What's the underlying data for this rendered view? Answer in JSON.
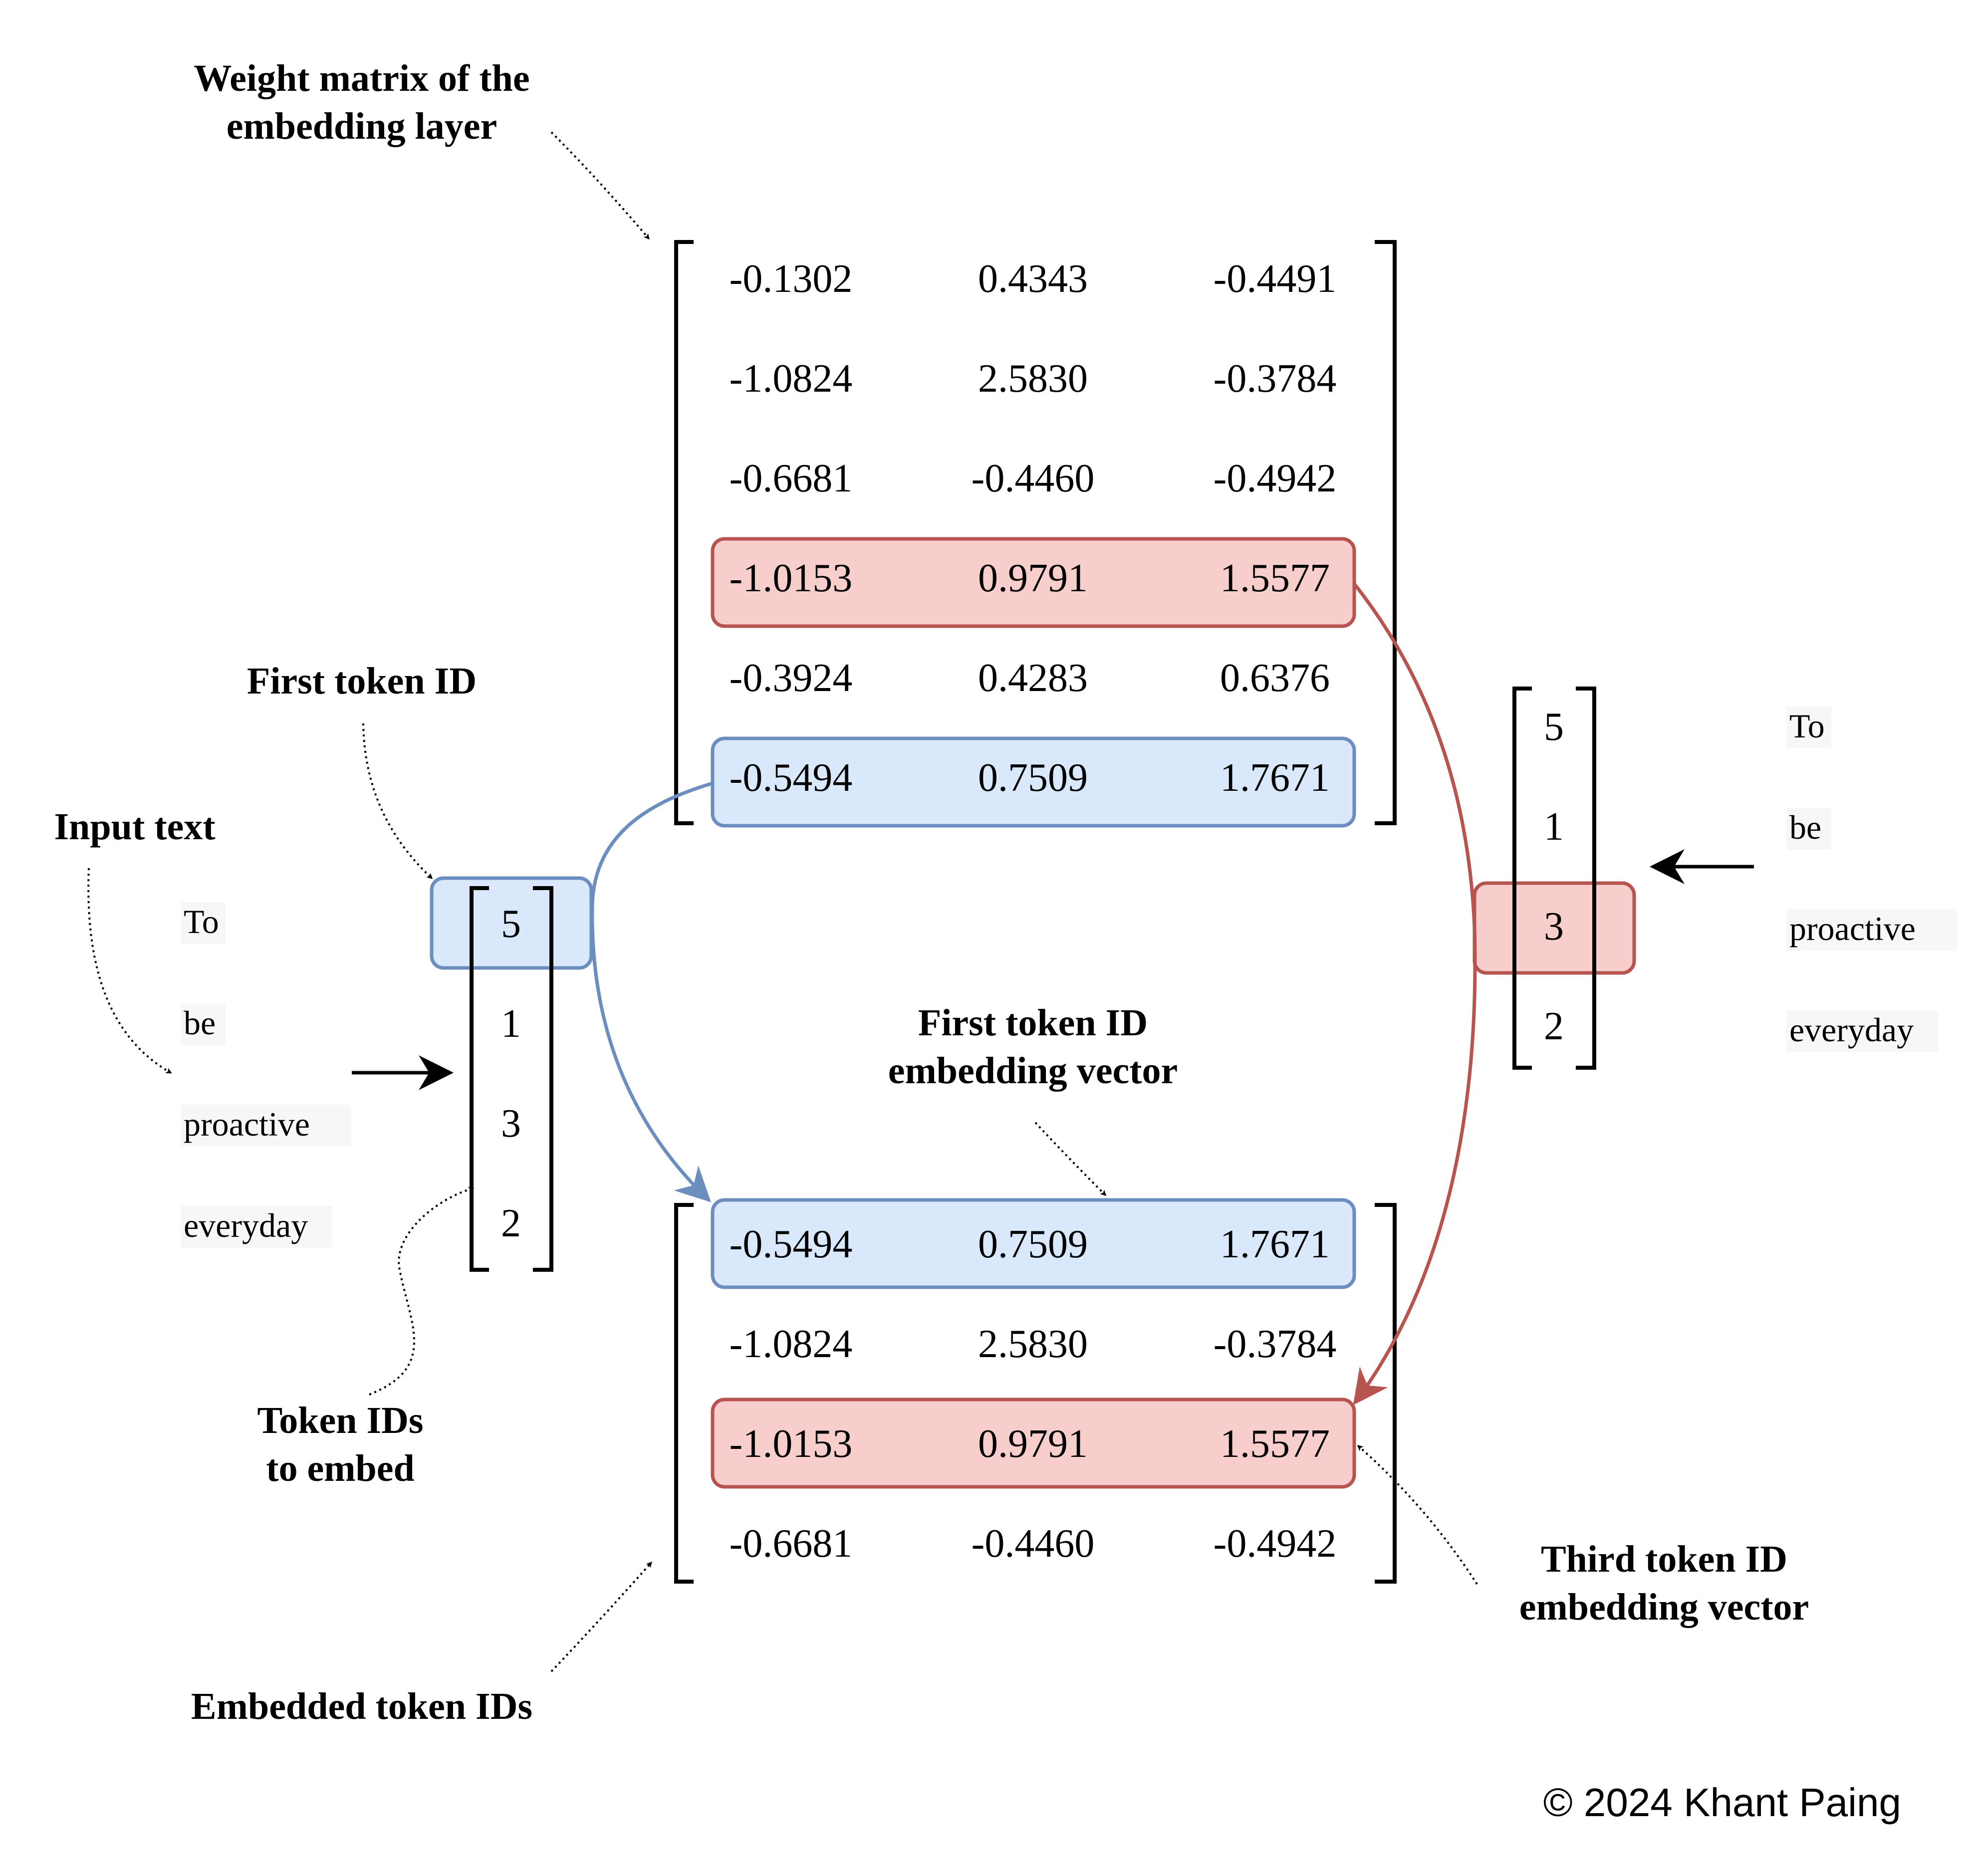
{
  "labels": {
    "weight_matrix_line1": "Weight matrix of the",
    "weight_matrix_line2": "embedding layer",
    "first_token_id": "First token ID",
    "input_text": "Input text",
    "first_vec_line1": "First token ID",
    "first_vec_line2": "embedding vector",
    "token_ids_line1": "Token IDs",
    "token_ids_line2": "to embed",
    "embedded_token_ids": "Embedded token IDs",
    "third_vec_line1": "Third token ID",
    "third_vec_line2": "embedding vector",
    "copyright": "© 2024 Khant Paing"
  },
  "weight_matrix": [
    [
      "-0.1302",
      "0.4343",
      "-0.4491"
    ],
    [
      "-1.0824",
      "2.5830",
      "-0.3784"
    ],
    [
      "-0.6681",
      "-0.4460",
      "-0.4942"
    ],
    [
      "-1.0153",
      "0.9791",
      "1.5577"
    ],
    [
      "-0.3924",
      "0.4283",
      "0.6376"
    ],
    [
      "-0.5494",
      "0.7509",
      "1.7671"
    ]
  ],
  "embedded_matrix": [
    [
      "-0.5494",
      "0.7509",
      "1.7671"
    ],
    [
      "-1.0824",
      "2.5830",
      "-0.3784"
    ],
    [
      "-1.0153",
      "0.9791",
      "1.5577"
    ],
    [
      "-0.6681",
      "-0.4460",
      "-0.4942"
    ]
  ],
  "input_words_left": [
    "To",
    "be",
    "proactive",
    "everyday"
  ],
  "token_ids_left": [
    "5",
    "1",
    "3",
    "2"
  ],
  "input_words_right": [
    "To",
    "be",
    "proactive",
    "everyday"
  ],
  "token_ids_right": [
    "5",
    "1",
    "3",
    "2"
  ],
  "colors": {
    "blue_fill": "#dae8fc",
    "blue_stroke": "#6c8ebf",
    "red_fill": "#f8cecc",
    "red_stroke": "#b85450",
    "word_bg": "#f7f7f7"
  }
}
